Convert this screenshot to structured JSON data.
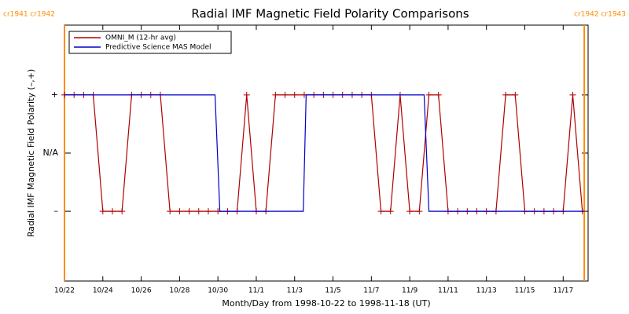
{
  "chart_data": {
    "type": "line",
    "title": "Radial IMF Magnetic Field Polarity Comparisons",
    "x_label": "Month/Day from 1998-10-22 to 1998-11-18 (UT)",
    "y_label": "Radial IMF Magnetic Field Polarity (–,+)",
    "xlim": [
      0,
      27.3
    ],
    "ylim": [
      -2.2,
      2.2
    ],
    "xticks": [
      {
        "value": 0,
        "label": "10/22"
      },
      {
        "value": 2,
        "label": "10/24"
      },
      {
        "value": 4,
        "label": "10/26"
      },
      {
        "value": 6,
        "label": "10/28"
      },
      {
        "value": 8,
        "label": "10/30"
      },
      {
        "value": 10,
        "label": "11/1"
      },
      {
        "value": 12,
        "label": "11/3"
      },
      {
        "value": 14,
        "label": "11/5"
      },
      {
        "value": 16,
        "label": "11/7"
      },
      {
        "value": 18,
        "label": "11/9"
      },
      {
        "value": 20,
        "label": "11/11"
      },
      {
        "value": 22,
        "label": "11/13"
      },
      {
        "value": 24,
        "label": "11/15"
      },
      {
        "value": 26,
        "label": "11/17"
      }
    ],
    "yticks": [
      {
        "value": 1,
        "label": "+"
      },
      {
        "value": 0,
        "label": "N/A"
      },
      {
        "value": -1,
        "label": "–"
      }
    ],
    "legend": "upper left",
    "boundaries": [
      {
        "x": 0,
        "label": "cr1941 cr1942"
      },
      {
        "x": 27.1,
        "label": "cr1942 cr1943"
      }
    ],
    "boundary_color": "#ff8c00",
    "series": [
      {
        "name": "OMNI_M (12-hr avg)",
        "color": "#b00000",
        "markers": true,
        "x": [
          0,
          0.5,
          1,
          1.5,
          2,
          2.5,
          3,
          3.5,
          4,
          4.5,
          5,
          5.5,
          6,
          6.5,
          7,
          7.5,
          8,
          8.5,
          9,
          9.5,
          10,
          10.5,
          11,
          11.5,
          12,
          12.5,
          13,
          13.5,
          14,
          14.5,
          15,
          15.5,
          16,
          16.5,
          17,
          17.5,
          18,
          18.5,
          19,
          19.5,
          20,
          20.5,
          21,
          21.5,
          22,
          22.5,
          23,
          23.5,
          24,
          24.5,
          25,
          25.5,
          26,
          26.5,
          27
        ],
        "values": [
          1,
          1,
          1,
          1,
          -1,
          -1,
          -1,
          1,
          1,
          1,
          1,
          -1,
          -1,
          -1,
          -1,
          -1,
          -1,
          -1,
          -1,
          1,
          -1,
          -1,
          1,
          1,
          1,
          1,
          1,
          1,
          1,
          1,
          1,
          1,
          1,
          -1,
          -1,
          1,
          -1,
          -1,
          1,
          1,
          -1,
          -1,
          -1,
          -1,
          -1,
          -1,
          1,
          1,
          -1,
          -1,
          -1,
          -1,
          -1,
          1,
          -1
        ]
      },
      {
        "name": "Predictive Science MAS Model",
        "color": "#0000c8",
        "markers": false,
        "x": [
          0,
          7.85,
          8.1,
          12.45,
          12.6,
          18.75,
          19.0,
          27.1
        ],
        "values": [
          1,
          1,
          -1,
          -1,
          1,
          1,
          -1,
          -1
        ]
      }
    ]
  }
}
